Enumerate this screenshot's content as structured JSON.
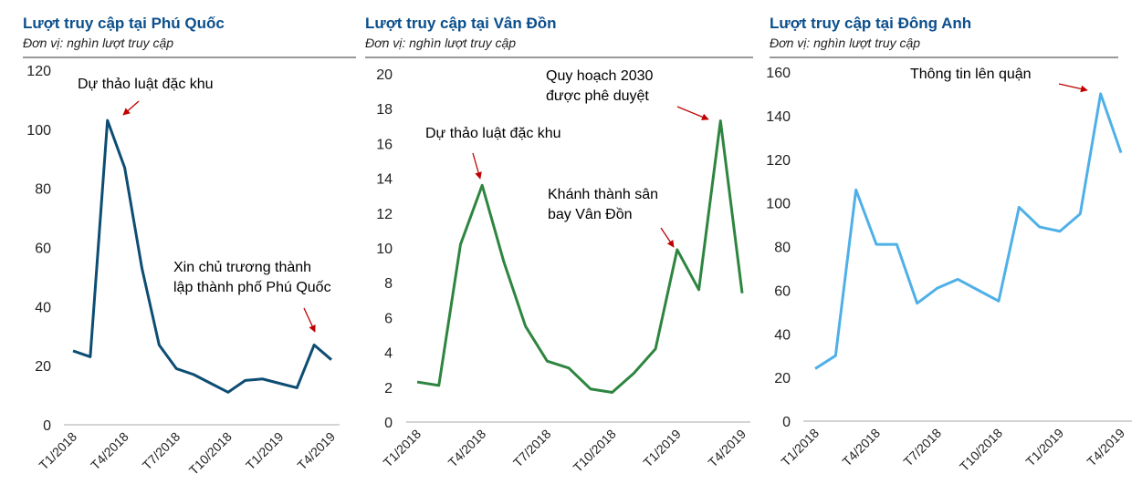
{
  "chart_data": [
    {
      "type": "line",
      "title": "Lượt truy cập tại Phú Quốc",
      "subtitle": "Đơn vị: nghìn lượt truy cập",
      "categories": [
        "T1/2018",
        null,
        null,
        "T4/2018",
        null,
        null,
        "T7/2018",
        null,
        null,
        "T10/2018",
        null,
        null,
        "T1/2019",
        null,
        null,
        "T4/2019"
      ],
      "series": [
        {
          "name": "Phú Quốc",
          "color": "#0d4d73",
          "values": [
            25,
            23,
            103,
            87,
            53,
            27,
            19,
            17,
            14,
            11,
            15,
            15.5,
            14,
            12.5,
            27,
            22
          ]
        }
      ],
      "ylim": [
        0,
        120
      ],
      "yticks": [
        0,
        20,
        40,
        60,
        80,
        100,
        120
      ],
      "grid": false,
      "annotations": [
        {
          "lines": [
            "Dự thảo luật đặc khu"
          ]
        },
        {
          "lines": [
            "Xin chủ trương thành",
            "lập thành phố Phú Quốc"
          ]
        }
      ]
    },
    {
      "type": "line",
      "title": "Lượt truy cập tại Vân Đồn",
      "subtitle": "Đơn vị: nghìn lượt truy cập",
      "categories": [
        "T1/2018",
        null,
        null,
        "T4/2018",
        null,
        null,
        "T7/2018",
        null,
        null,
        "T10/2018",
        null,
        null,
        "T1/2019",
        null,
        null,
        "T4/2019"
      ],
      "series": [
        {
          "name": "Vân Đồn",
          "color": "#2e8540",
          "values": [
            2.3,
            2.1,
            10.2,
            13.6,
            9.2,
            5.5,
            3.5,
            3.1,
            1.9,
            1.7,
            2.8,
            4.2,
            9.9,
            7.6,
            17.3,
            7.4
          ]
        }
      ],
      "ylim": [
        0,
        20
      ],
      "yticks": [
        0,
        2,
        4,
        6,
        8,
        10,
        12,
        14,
        16,
        18,
        20
      ],
      "grid": false,
      "annotations": [
        {
          "lines": [
            "Quy hoạch 2030",
            "được phê duyệt"
          ]
        },
        {
          "lines": [
            "Dự thảo luật đặc khu"
          ]
        },
        {
          "lines": [
            "Khánh thành sân",
            "bay Vân Đồn"
          ]
        }
      ]
    },
    {
      "type": "line",
      "title": "Lượt truy cập tại Đông Anh",
      "subtitle": "Đơn vị: nghìn lượt truy cập",
      "categories": [
        "T1/2018",
        null,
        null,
        "T4/2018",
        null,
        null,
        "T7/2018",
        null,
        null,
        "T10/2018",
        null,
        null,
        "T1/2019",
        null,
        null,
        "T4/2019"
      ],
      "series": [
        {
          "name": "Đông Anh",
          "color": "#4fb0e8",
          "values": [
            24,
            30,
            106,
            81,
            81,
            54,
            61,
            65,
            60,
            55,
            98,
            89,
            87,
            95,
            150,
            123
          ]
        }
      ],
      "ylim": [
        0,
        160
      ],
      "yticks": [
        0,
        20,
        40,
        60,
        80,
        100,
        120,
        140,
        160
      ],
      "grid": false,
      "annotations": [
        {
          "lines": [
            "Thông tin lên quận"
          ]
        }
      ]
    }
  ]
}
